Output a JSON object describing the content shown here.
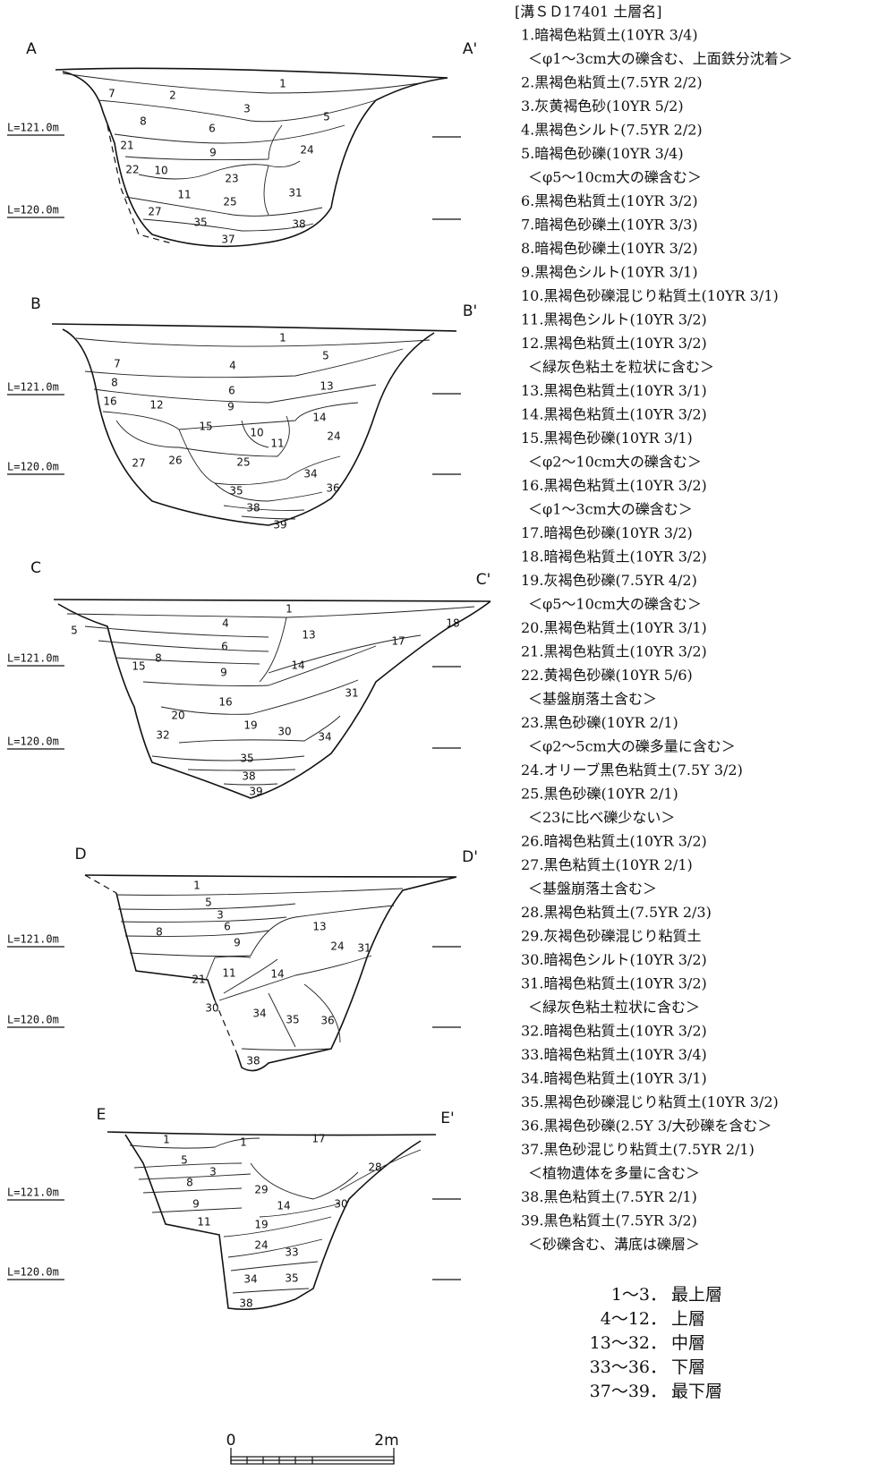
{
  "sections": [
    {
      "start": "A",
      "end": "A'",
      "levels": [
        "L=121.0m",
        "L=120.0m"
      ],
      "layers": [
        "1",
        "7",
        "2",
        "3",
        "8",
        "5",
        "6",
        "21",
        "9",
        "24",
        "10",
        "22",
        "23",
        "31",
        "11",
        "25",
        "27",
        "35",
        "38",
        "37"
      ]
    },
    {
      "start": "B",
      "end": "B'",
      "levels": [
        "L=121.0m",
        "L=120.0m"
      ],
      "layers": [
        "1",
        "5",
        "7",
        "4",
        "8",
        "6",
        "13",
        "16",
        "12",
        "9",
        "14",
        "15",
        "10",
        "24",
        "11",
        "27",
        "26",
        "25",
        "34",
        "36",
        "35",
        "38",
        "39"
      ]
    },
    {
      "start": "C",
      "end": "C'",
      "levels": [
        "L=121.0m",
        "L=120.0m"
      ],
      "layers": [
        "1",
        "18",
        "5",
        "4",
        "13",
        "17",
        "6",
        "8",
        "15",
        "14",
        "9",
        "31",
        "16",
        "20",
        "19",
        "30",
        "34",
        "32",
        "35",
        "38",
        "39"
      ]
    },
    {
      "start": "D",
      "end": "D'",
      "levels": [
        "L=121.0m",
        "L=120.0m"
      ],
      "layers": [
        "1",
        "5",
        "3",
        "6",
        "8",
        "13",
        "9",
        "24",
        "31",
        "11",
        "14",
        "21",
        "30",
        "34",
        "35",
        "36",
        "38"
      ]
    },
    {
      "start": "E",
      "end": "E'",
      "levels": [
        "L=121.0m",
        "L=120.0m"
      ],
      "layers": [
        "1",
        "1",
        "17",
        "5",
        "28",
        "3",
        "8",
        "29",
        "14",
        "30",
        "9",
        "19",
        "11",
        "24",
        "33",
        "34",
        "35",
        "38"
      ]
    }
  ],
  "legend": {
    "title": "[溝ＳＤ17401 土層名]",
    "lines": [
      "1.暗褐色粘質土(10YR 3/4)",
      "＜φ1～3cm大の礫含む、上面鉄分沈着＞",
      "2.黒褐色粘質土(7.5YR 2/2)",
      "3.灰黄褐色砂(10YR 5/2)",
      "4.黒褐色シルト(7.5YR 2/2)",
      "5.暗褐色砂礫(10YR 3/4)",
      "＜φ5～10cm大の礫含む＞",
      "6.黒褐色粘質土(10YR 3/2)",
      "7.暗褐色砂礫土(10YR 3/3)",
      "8.暗褐色砂礫土(10YR 3/2)",
      "9.黒褐色シルト(10YR 3/1)",
      "10.黒褐色砂礫混じり粘質土(10YR 3/1)",
      "11.黒褐色シルト(10YR 3/2)",
      "12.黒褐色粘質土(10YR 3/2)",
      "＜緑灰色粘土を粒状に含む＞",
      "13.黒褐色粘質土(10YR 3/1)",
      "14.黒褐色粘質土(10YR 3/2)",
      "15.黒褐色砂礫(10YR 3/1)",
      "＜φ2～10cm大の礫含む＞",
      "16.黒褐色粘質土(10YR 3/2)",
      "＜φ1～3cm大の礫含む＞",
      "17.暗褐色砂礫(10YR 3/2)",
      "18.暗褐色粘質土(10YR 3/2)",
      "19.灰褐色砂礫(7.5YR 4/2)",
      "＜φ5～10cm大の礫含む＞",
      "20.黒褐色粘質土(10YR 3/1)",
      "21.黒褐色粘質土(10YR 3/2)",
      "22.黄褐色砂礫(10YR 5/6)",
      "＜基盤崩落土含む＞",
      "23.黒色砂礫(10YR 2/1)",
      "＜φ2～5cm大の礫多量に含む＞",
      "24.オリーブ黒色粘質土(7.5Y 3/2)",
      "25.黒色砂礫(10YR 2/1)",
      "＜23に比べ礫少ない＞",
      "26.暗褐色粘質土(10YR 3/2)",
      "27.黒色粘質土(10YR 2/1)",
      "＜基盤崩落土含む＞",
      "28.黒褐色粘質土(7.5YR 2/3)",
      "29.灰褐色砂礫混じり粘質土",
      "30.暗褐色シルト(10YR 3/2)",
      "31.暗褐色粘質土(10YR 3/2)",
      "＜緑灰色粘土粒状に含む＞",
      "32.暗褐色粘質土(10YR 3/2)",
      "33.暗褐色粘質土(10YR 3/4)",
      "34.暗褐色粘質土(10YR 3/1)",
      "35.黒褐色砂礫混じり粘質土(10YR 3/2)",
      "36.黒褐色砂礫(2.5Y 3/大砂礫を含む＞",
      "37.黒色砂混じり粘質土(7.5YR 2/1)",
      "＜植物遺体を多量に含む＞",
      "38.黒色粘質土(7.5YR 2/1)",
      "39.黒色粘質土(7.5YR 3/2)",
      "＜砂礫含む、溝底は礫層＞"
    ]
  },
  "periods": [
    {
      "range": "1～3．",
      "name": "最上層"
    },
    {
      "range": "4～12．",
      "name": "上層"
    },
    {
      "range": "13～32．",
      "name": "中層"
    },
    {
      "range": "33～36．",
      "name": "下層"
    },
    {
      "range": "37～39．",
      "name": "最下層"
    }
  ],
  "scale": {
    "start": "0",
    "end": "2m"
  }
}
